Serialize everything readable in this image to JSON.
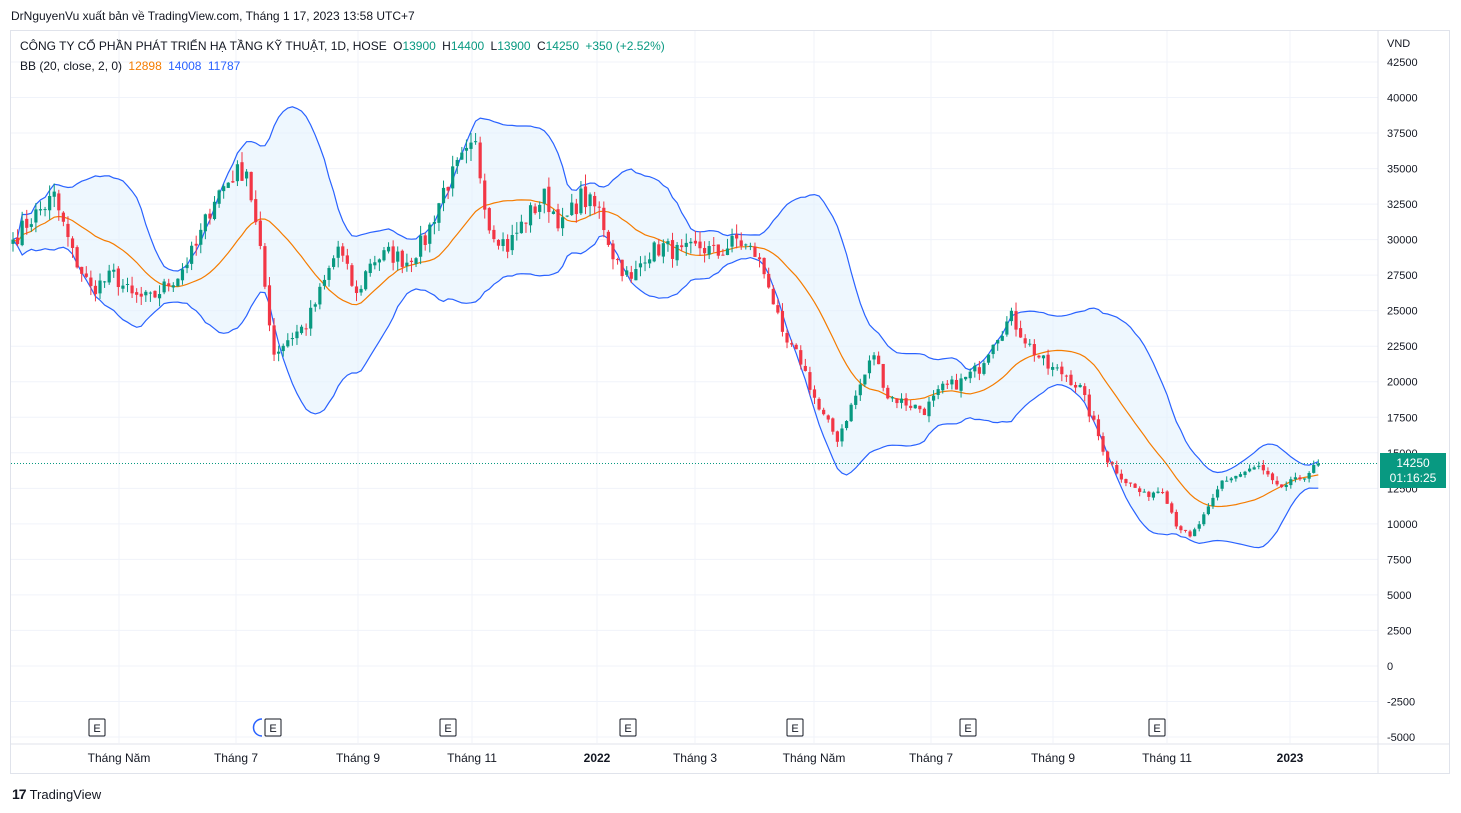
{
  "publisher": "DrNguyenVu xuất bản về TradingView.com, Tháng 1 17, 2023 13:58 UTC+7",
  "legend": {
    "symbol": "CÔNG TY CỔ PHẦN PHÁT TRIỂN HẠ TẦNG KỸ THUẬT, 1D, HOSE",
    "o_label": "O",
    "o": "13900",
    "h_label": "H",
    "h": "14400",
    "l_label": "L",
    "l": "13900",
    "c_label": "C",
    "c": "14250",
    "change": "+350 (+2.52%)",
    "bb_label": "BB (20, close, 2, 0)",
    "bb_basis": "12898",
    "bb_upper": "14008",
    "bb_lower": "11787"
  },
  "currency": "VND",
  "price_tag": {
    "price": "14250",
    "countdown": "01:16:25"
  },
  "footer": {
    "brand": "TradingView",
    "logo": "17"
  },
  "colors": {
    "up": "#089981",
    "down": "#f23645",
    "basis": "#f57c00",
    "bands": "#2962ff",
    "band_fill": "#e3f2fd",
    "grid": "#f0f3fa",
    "text": "#131722"
  },
  "chart_data": {
    "type": "candlestick",
    "title": "CÔNG TY CỔ PHẦN PHÁT TRIỂN HẠ TẦNG KỸ THUẬT, 1D, HOSE",
    "ylabel": "VND",
    "ylim": [
      -5000,
      42500
    ],
    "y_ticks": [
      42500,
      40000,
      37500,
      35000,
      32500,
      30000,
      27500,
      25000,
      22500,
      20000,
      17500,
      15000,
      12500,
      10000,
      7500,
      5000,
      2500,
      0,
      -2500,
      -5000
    ],
    "x_labels": [
      "Tháng Năm",
      "Tháng 7",
      "Tháng 9",
      "Tháng 11",
      "2022",
      "Tháng 3",
      "Tháng Năm",
      "Tháng 7",
      "Tháng 9",
      "Tháng 11",
      "2023"
    ],
    "x_label_bold": [
      false,
      false,
      false,
      false,
      true,
      false,
      false,
      false,
      false,
      false,
      true
    ],
    "earnings_markers": [
      "E",
      "E",
      "E",
      "E",
      "E",
      "E",
      "E"
    ],
    "last_price": 14250,
    "bb_last": {
      "basis": 12898,
      "upper": 14008,
      "lower": 11787
    },
    "close_anchors": [
      [
        0,
        30000
      ],
      [
        4,
        31500
      ],
      [
        9,
        33000
      ],
      [
        13,
        29000
      ],
      [
        17,
        26500
      ],
      [
        22,
        27500
      ],
      [
        26,
        26000
      ],
      [
        30,
        25800
      ],
      [
        36,
        27500
      ],
      [
        40,
        29500
      ],
      [
        44,
        33000
      ],
      [
        48,
        34500
      ],
      [
        51,
        35000
      ],
      [
        54,
        29000
      ],
      [
        57,
        22000
      ],
      [
        60,
        23000
      ],
      [
        64,
        24000
      ],
      [
        68,
        27000
      ],
      [
        71,
        29500
      ],
      [
        75,
        26000
      ],
      [
        78,
        28500
      ],
      [
        82,
        29000
      ],
      [
        86,
        28500
      ],
      [
        90,
        30000
      ],
      [
        94,
        33500
      ],
      [
        98,
        35500
      ],
      [
        101,
        36500
      ],
      [
        104,
        31000
      ],
      [
        108,
        29500
      ],
      [
        112,
        31500
      ],
      [
        116,
        33000
      ],
      [
        120,
        31000
      ],
      [
        124,
        33000
      ],
      [
        128,
        32000
      ],
      [
        131,
        29000
      ],
      [
        135,
        27000
      ],
      [
        138,
        29000
      ],
      [
        142,
        29500
      ],
      [
        146,
        29000
      ],
      [
        150,
        29500
      ],
      [
        154,
        29000
      ],
      [
        158,
        30000
      ],
      [
        162,
        29000
      ],
      [
        165,
        27000
      ],
      [
        168,
        23000
      ],
      [
        172,
        21500
      ],
      [
        176,
        18000
      ],
      [
        180,
        16000
      ],
      [
        184,
        19000
      ],
      [
        188,
        22000
      ],
      [
        191,
        19000
      ],
      [
        195,
        18500
      ],
      [
        199,
        18000
      ],
      [
        203,
        19500
      ],
      [
        207,
        20000
      ],
      [
        211,
        21000
      ],
      [
        214,
        23000
      ],
      [
        218,
        24500
      ],
      [
        222,
        22500
      ],
      [
        226,
        21000
      ],
      [
        230,
        20500
      ],
      [
        233,
        19500
      ],
      [
        236,
        17000
      ],
      [
        239,
        14500
      ],
      [
        243,
        13000
      ],
      [
        247,
        12000
      ],
      [
        251,
        12500
      ],
      [
        254,
        10000
      ],
      [
        257,
        9000
      ],
      [
        261,
        11000
      ],
      [
        264,
        13000
      ],
      [
        268,
        13500
      ],
      [
        272,
        14000
      ],
      [
        276,
        12500
      ],
      [
        280,
        13000
      ],
      [
        284,
        13900
      ],
      [
        285,
        14250
      ]
    ]
  }
}
